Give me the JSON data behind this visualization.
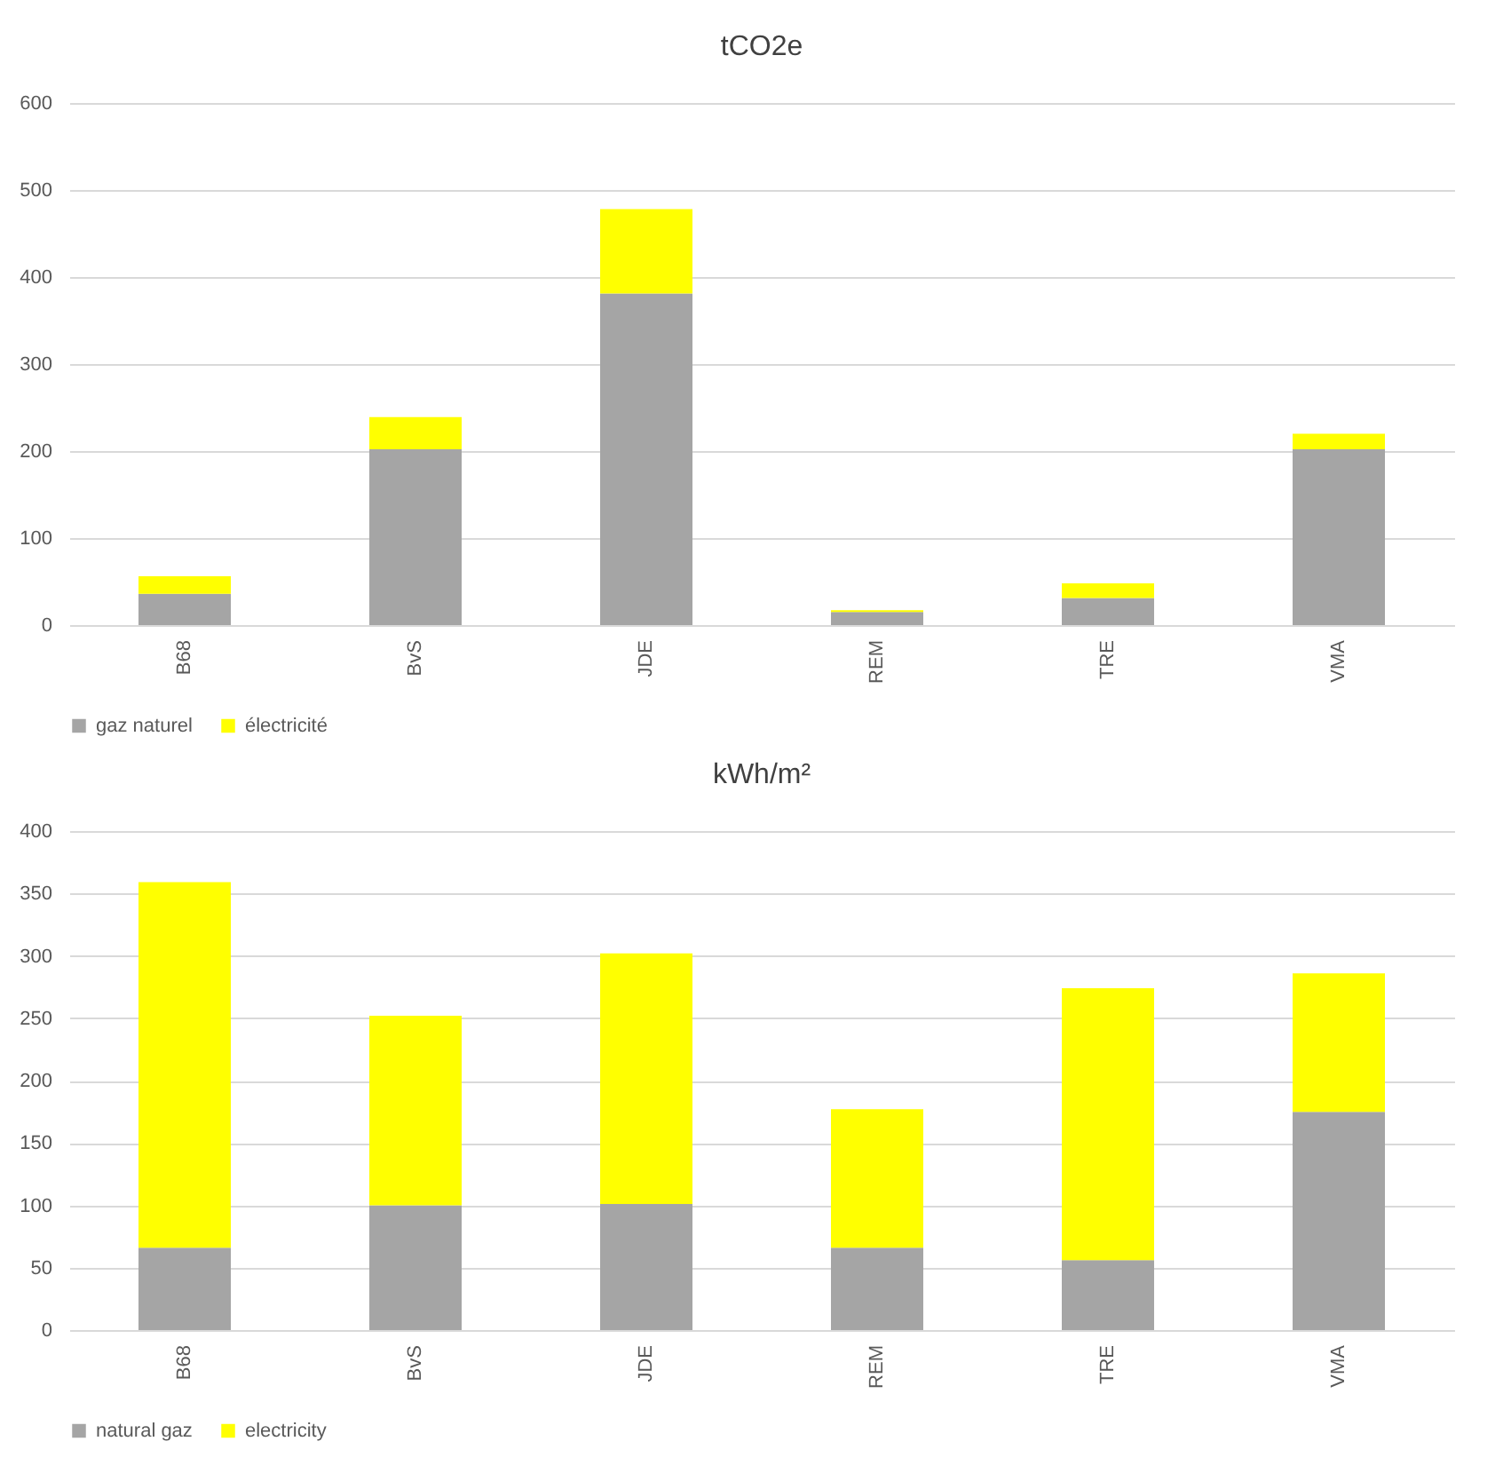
{
  "chart_data": [
    {
      "type": "bar",
      "title": "tCO2e",
      "categories": [
        "B68",
        "BvS",
        "JDE",
        "REM",
        "TRE",
        "VMA"
      ],
      "stacked": true,
      "series": [
        {
          "name": "gaz naturel",
          "color": "#a5a5a5",
          "values": [
            36,
            202,
            381,
            15,
            31,
            202
          ]
        },
        {
          "name": "électricité",
          "color": "#ffff00",
          "values": [
            20,
            37,
            97,
            2,
            17,
            18
          ]
        }
      ],
      "ylim": [
        0,
        600
      ],
      "yticks": [
        0,
        100,
        200,
        300,
        400,
        500,
        600
      ],
      "grid": "y",
      "legend": "bottom"
    },
    {
      "type": "bar",
      "title": "kWh/m²",
      "categories": [
        "B68",
        "BvS",
        "JDE",
        "REM",
        "TRE",
        "VMA"
      ],
      "stacked": true,
      "series": [
        {
          "name": "natural gaz",
          "color": "#a5a5a5",
          "values": [
            66,
            100,
            101,
            66,
            56,
            175
          ]
        },
        {
          "name": "electricity",
          "color": "#ffff00",
          "values": [
            293,
            152,
            201,
            111,
            218,
            111
          ]
        }
      ],
      "ylim": [
        0,
        400
      ],
      "yticks": [
        0,
        50,
        100,
        150,
        200,
        250,
        300,
        350,
        400
      ],
      "grid": "y",
      "legend": "bottom"
    }
  ]
}
